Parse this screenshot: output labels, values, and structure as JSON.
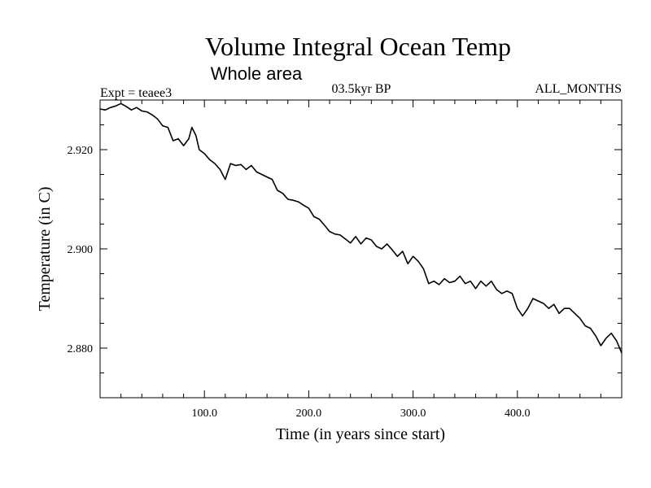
{
  "chart_data": {
    "type": "line",
    "title": "Volume Integral Ocean Temp",
    "subtitle": "Whole area",
    "experiment_label": "Expt = teaee3",
    "period_label": "03.5kyr BP",
    "months_label": "ALL_MONTHS",
    "xlabel": "Time (in years since start)",
    "ylabel": "Temperature (in C)",
    "xlim": [
      0,
      500
    ],
    "ylim": [
      2.87,
      2.93
    ],
    "x_ticks": [
      {
        "value": 100,
        "label": "100.0"
      },
      {
        "value": 200,
        "label": "200.0"
      },
      {
        "value": 300,
        "label": "300.0"
      },
      {
        "value": 400,
        "label": "400.0"
      }
    ],
    "y_ticks": [
      {
        "value": 2.88,
        "label": "2.880"
      },
      {
        "value": 2.9,
        "label": "2.900"
      },
      {
        "value": 2.92,
        "label": "2.920"
      }
    ],
    "grid": false,
    "series": [
      {
        "name": "Volume Integral Ocean Temp",
        "x": [
          0,
          5,
          10,
          15,
          20,
          25,
          30,
          35,
          40,
          45,
          50,
          55,
          60,
          65,
          70,
          75,
          80,
          85,
          88,
          92,
          95,
          100,
          105,
          110,
          115,
          120,
          125,
          130,
          135,
          140,
          145,
          150,
          155,
          160,
          165,
          170,
          175,
          180,
          185,
          190,
          195,
          200,
          205,
          210,
          215,
          220,
          225,
          230,
          235,
          240,
          245,
          250,
          255,
          260,
          265,
          270,
          275,
          280,
          285,
          290,
          295,
          300,
          305,
          310,
          315,
          320,
          325,
          330,
          335,
          340,
          345,
          350,
          355,
          360,
          365,
          370,
          375,
          380,
          385,
          390,
          395,
          400,
          405,
          410,
          415,
          420,
          425,
          430,
          435,
          440,
          445,
          450,
          455,
          460,
          465,
          470,
          475,
          480,
          485,
          490,
          495,
          500
        ],
        "values": [
          2.9282,
          2.928,
          2.9285,
          2.9288,
          2.9293,
          2.9287,
          2.928,
          2.9285,
          2.9278,
          2.9276,
          2.927,
          2.9262,
          2.9248,
          2.9245,
          2.9218,
          2.9222,
          2.9208,
          2.9222,
          2.9245,
          2.9228,
          2.92,
          2.9192,
          2.918,
          2.9172,
          2.916,
          2.914,
          2.9172,
          2.9168,
          2.917,
          2.916,
          2.9168,
          2.9155,
          2.915,
          2.9145,
          2.914,
          2.9118,
          2.9112,
          2.91,
          2.9098,
          2.9095,
          2.9088,
          2.9082,
          2.9065,
          2.906,
          2.9048,
          2.9035,
          2.903,
          2.9028,
          2.902,
          2.9012,
          2.9025,
          2.901,
          2.9022,
          2.9018,
          2.9005,
          2.9,
          2.901,
          2.8998,
          2.8985,
          2.8995,
          2.897,
          2.8985,
          2.8975,
          2.896,
          2.893,
          2.8935,
          2.8928,
          2.894,
          2.8932,
          2.8935,
          2.8945,
          2.893,
          2.8935,
          2.892,
          2.8935,
          2.8925,
          2.8935,
          2.8918,
          2.891,
          2.8915,
          2.891,
          2.888,
          2.8865,
          2.888,
          2.89,
          2.8895,
          2.889,
          2.888,
          2.8888,
          2.887,
          2.888,
          2.888,
          2.887,
          2.886,
          2.8845,
          2.884,
          2.8825,
          2.8805,
          2.882,
          2.883,
          2.8815,
          2.879
        ]
      }
    ]
  }
}
